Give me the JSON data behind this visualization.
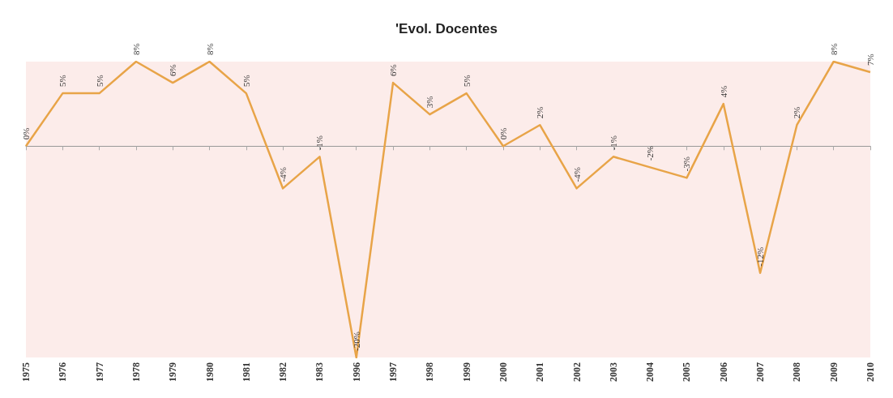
{
  "chart_data": {
    "type": "line",
    "title": "'Evol. Docentes",
    "categories": [
      "1975",
      "1976",
      "1977",
      "1978",
      "1979",
      "1980",
      "1981",
      "1982",
      "1983",
      "1996",
      "1997",
      "1998",
      "1999",
      "2000",
      "2001",
      "2002",
      "2003",
      "2004",
      "2005",
      "2006",
      "2007",
      "2008",
      "2009",
      "2010"
    ],
    "series": [
      {
        "color": "#e8a448",
        "values": [
          0,
          5,
          5,
          8,
          6,
          8,
          5,
          -4,
          -1,
          -20,
          6,
          3,
          5,
          0,
          2,
          -4,
          -1,
          -2,
          -3,
          4,
          -12,
          2,
          8,
          7
        ],
        "value_labels": [
          "0%",
          "5%",
          "5%",
          "8%",
          "6%",
          "8%",
          "5%",
          "-4%",
          "-1%",
          "-20%",
          "6%",
          "3%",
          "5%",
          "0%",
          "2%",
          "-4%",
          "-1%",
          "-2%",
          "-3%",
          "4%",
          "-12%",
          "2%",
          "8%",
          "7%"
        ]
      }
    ],
    "marker": "none",
    "grid": false,
    "tick_labels": "x"
  }
}
